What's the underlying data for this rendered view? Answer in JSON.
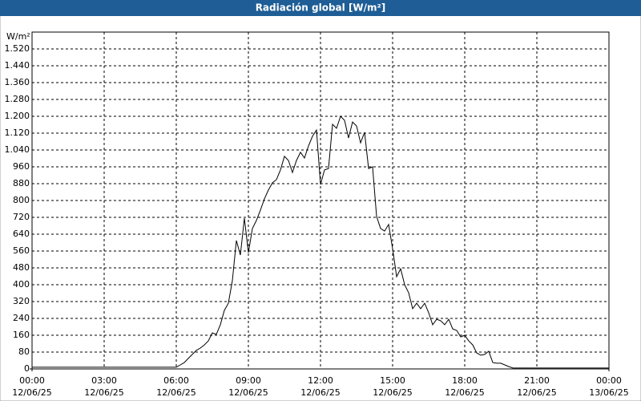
{
  "chart_data": {
    "type": "line",
    "title": "Radiación global [W/m²]",
    "y_label": "W/m²",
    "color": "#000000",
    "grid": true,
    "xlim": [
      0,
      1440
    ],
    "xticks": [
      {
        "value": 0,
        "label": "00:00"
      },
      {
        "value": 180,
        "label": "03:00"
      },
      {
        "value": 360,
        "label": "06:00"
      },
      {
        "value": 540,
        "label": "09:00"
      },
      {
        "value": 720,
        "label": "12:00"
      },
      {
        "value": 900,
        "label": "15:00"
      },
      {
        "value": 1080,
        "label": "18:00"
      },
      {
        "value": 1260,
        "label": "21:00"
      },
      {
        "value": 1440,
        "label": "00:00"
      }
    ],
    "xtick_dates": [
      "12/06/25",
      "12/06/25",
      "12/06/25",
      "12/06/25",
      "12/06/25",
      "12/06/25",
      "12/06/25",
      "12/06/25",
      "13/06/25"
    ],
    "ylim": [
      0,
      1600
    ],
    "yticks": [
      0,
      80,
      160,
      240,
      320,
      400,
      480,
      560,
      640,
      720,
      800,
      880,
      960,
      {
        "value": 1040,
        "label": "1.040"
      },
      {
        "value": 1120,
        "label": "1.120"
      },
      {
        "value": 1200,
        "label": "1.200"
      },
      {
        "value": 1280,
        "label": "1.280"
      },
      {
        "value": 1360,
        "label": "1.360"
      },
      {
        "value": 1440,
        "label": "1.440"
      },
      {
        "value": 1520,
        "label": "1.520"
      }
    ],
    "x": [
      0,
      360,
      370,
      380,
      390,
      400,
      410,
      420,
      430,
      440,
      450,
      460,
      470,
      480,
      490,
      500,
      510,
      520,
      530,
      540,
      550,
      560,
      570,
      580,
      590,
      600,
      610,
      620,
      630,
      640,
      650,
      660,
      670,
      680,
      690,
      700,
      710,
      720,
      730,
      740,
      750,
      760,
      770,
      780,
      790,
      800,
      810,
      820,
      830,
      840,
      850,
      860,
      870,
      880,
      890,
      900,
      910,
      920,
      930,
      940,
      950,
      960,
      970,
      980,
      990,
      1000,
      1010,
      1020,
      1030,
      1040,
      1050,
      1060,
      1070,
      1080,
      1090,
      1100,
      1110,
      1120,
      1130,
      1140,
      1150,
      1160,
      1170,
      1180,
      1190,
      1200,
      1440
    ],
    "values": [
      8,
      8,
      19,
      30,
      50,
      69,
      88,
      99,
      114,
      133,
      171,
      164,
      210,
      278,
      312,
      419,
      610,
      541,
      716,
      552,
      667,
      705,
      754,
      808,
      850,
      884,
      899,
      945,
      1010,
      990,
      933,
      990,
      1029,
      1002,
      1059,
      1105,
      1135,
      876,
      945,
      952,
      1162,
      1143,
      1200,
      1181,
      1097,
      1173,
      1154,
      1074,
      1124,
      952,
      960,
      724,
      667,
      655,
      686,
      571,
      438,
      476,
      400,
      362,
      286,
      312,
      286,
      312,
      267,
      210,
      236,
      229,
      210,
      236,
      190,
      183,
      152,
      160,
      133,
      114,
      76,
      65,
      69,
      84,
      30,
      27,
      27,
      19,
      11,
      4,
      4
    ]
  }
}
